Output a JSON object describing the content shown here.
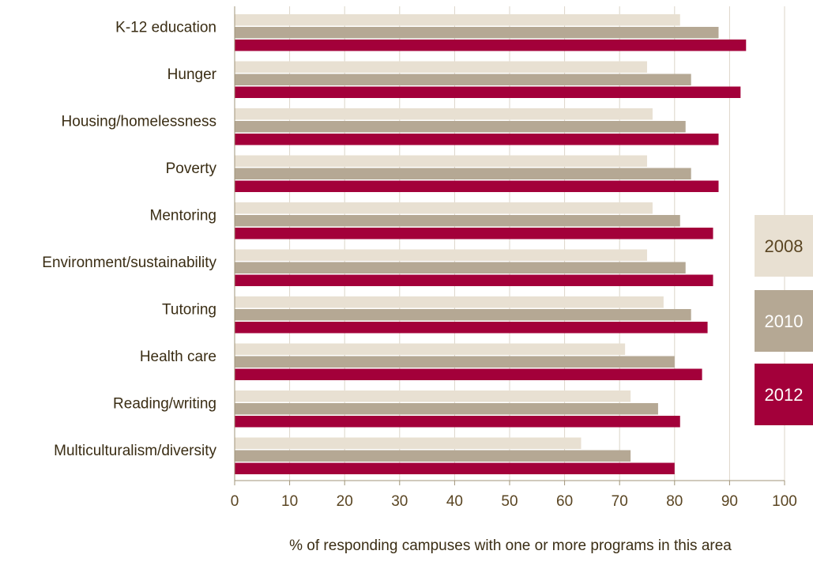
{
  "chart_data": {
    "type": "bar",
    "orientation": "horizontal",
    "categories": [
      "K-12 education",
      "Hunger",
      "Housing/homelessness",
      "Poverty",
      "Mentoring",
      "Environment/sustainability",
      "Tutoring",
      "Health care",
      "Reading/writing",
      "Multiculturalism/diversity"
    ],
    "series": [
      {
        "name": "2008",
        "color": "#e8e0d2",
        "text_color": "#5a4522",
        "values": [
          81,
          75,
          76,
          75,
          76,
          75,
          78,
          71,
          72,
          63
        ]
      },
      {
        "name": "2010",
        "color": "#b5a894",
        "text_color": "#ffffff",
        "values": [
          88,
          83,
          82,
          83,
          81,
          82,
          83,
          80,
          77,
          72
        ]
      },
      {
        "name": "2012",
        "color": "#a3003a",
        "text_color": "#ffffff",
        "values": [
          93,
          92,
          88,
          88,
          87,
          87,
          86,
          85,
          81,
          80
        ]
      }
    ],
    "xlim": [
      0,
      100
    ],
    "xticks": [
      "0",
      "10",
      "20",
      "30",
      "40",
      "50",
      "60",
      "70",
      "80",
      "90",
      "100"
    ],
    "xlabel": "% of responding campuses with one or more programs in this area",
    "grid": true,
    "legend_position": "right"
  }
}
